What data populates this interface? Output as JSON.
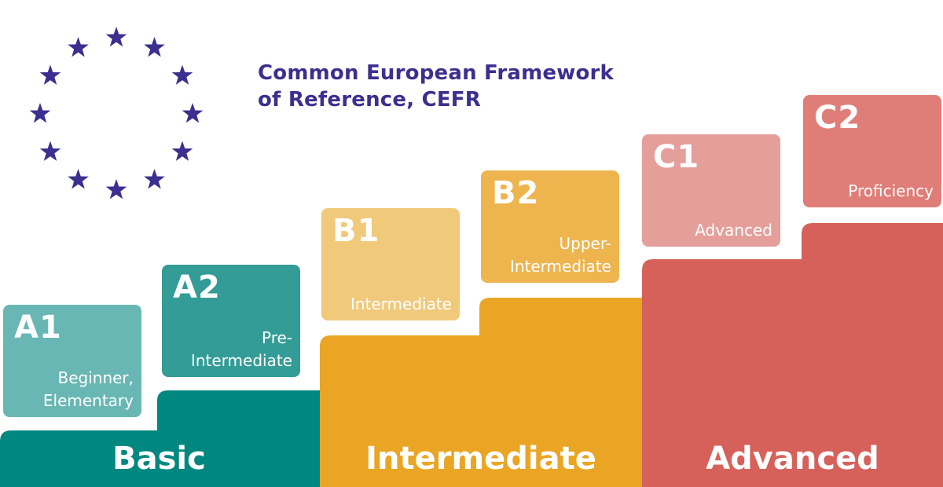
{
  "title": {
    "line1": "Common European Framework",
    "line2": "of Reference, CEFR"
  },
  "colors": {
    "title": "#3b2f8f",
    "stars": "#3b2f8f",
    "basic": "#008780",
    "intermediate": "#eaa524",
    "advanced": "#d6615a",
    "a1": "#68b7b4",
    "a2": "#339c97",
    "b1": "#f0c97b",
    "b2": "#eeb44e",
    "c1": "#e59f9b",
    "c2": "#df7e78"
  },
  "levels": [
    {
      "code": "A1",
      "name": "Beginner,\nElementary"
    },
    {
      "code": "A2",
      "name": "Pre-\nIntermediate"
    },
    {
      "code": "B1",
      "name": "Intermediate"
    },
    {
      "code": "B2",
      "name": "Upper-\nIntermediate"
    },
    {
      "code": "C1",
      "name": "Advanced"
    },
    {
      "code": "C2",
      "name": "Proficiency"
    }
  ],
  "groups": [
    {
      "label": "Basic"
    },
    {
      "label": "Intermediate"
    },
    {
      "label": "Advanced"
    }
  ],
  "emblem": {
    "name": "EU flag stars",
    "star_count": 12
  }
}
